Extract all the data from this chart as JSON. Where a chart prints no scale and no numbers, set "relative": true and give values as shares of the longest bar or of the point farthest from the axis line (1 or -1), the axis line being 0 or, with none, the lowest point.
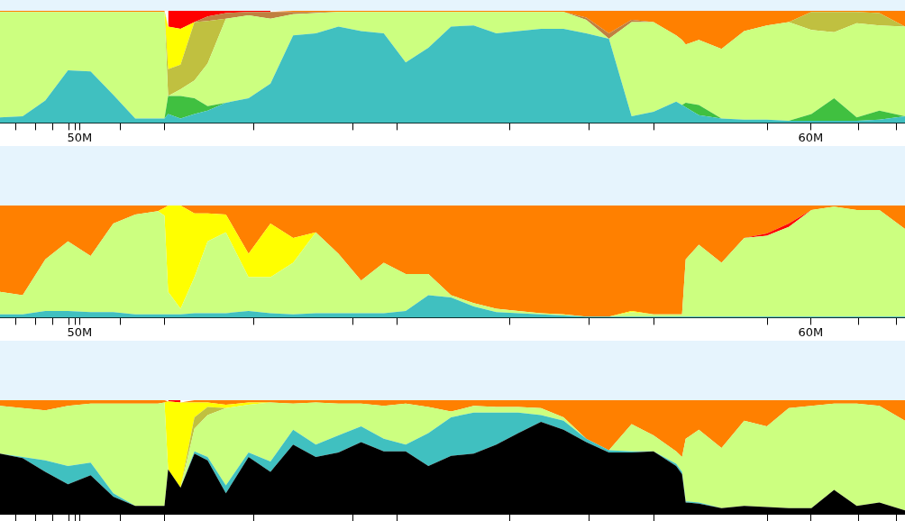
{
  "chart_data": [
    {
      "type": "area",
      "stacked": true,
      "relative": true,
      "tick_labels": "x",
      "x": [
        48.91,
        49.22,
        49.53,
        49.84,
        50.15,
        50.46,
        50.76,
        51.07,
        51.16,
        51.21,
        51.38,
        51.57,
        51.75,
        52.0,
        52.31,
        52.61,
        52.92,
        53.23,
        53.54,
        53.85,
        54.16,
        54.46,
        54.77,
        55.08,
        55.39,
        55.7,
        56.0,
        56.31,
        56.62,
        56.93,
        57.24,
        57.55,
        57.85,
        58.16,
        58.24,
        58.29,
        58.47,
        58.78,
        59.09,
        59.4,
        59.7,
        60.01,
        60.32,
        60.63,
        60.94,
        61.29
      ],
      "xlim": [
        48.91,
        61.29
      ],
      "xticks": [
        {
          "value": 49.12,
          "label": null
        },
        {
          "value": 49.4,
          "label": null
        },
        {
          "value": 49.63,
          "label": null
        },
        {
          "value": 49.85,
          "label": null
        },
        {
          "value": 49.94,
          "label": null
        },
        {
          "value": 50,
          "label": "50M"
        },
        {
          "value": 50.55,
          "label": null
        },
        {
          "value": 51.16,
          "label": null
        },
        {
          "value": 52.38,
          "label": null
        },
        {
          "value": 53.74,
          "label": null
        },
        {
          "value": 54.34,
          "label": null
        },
        {
          "value": 55.88,
          "label": null
        },
        {
          "value": 56.97,
          "label": null
        },
        {
          "value": 57.85,
          "label": null
        },
        {
          "value": 59.41,
          "label": null
        },
        {
          "value": 60,
          "label": "60M"
        },
        {
          "value": 60.65,
          "label": null
        },
        {
          "value": 61.17,
          "label": null
        }
      ],
      "series": [
        {
          "color": "#40c0c0",
          "values": [
            0.05,
            0.06,
            0.2,
            0.47,
            0.46,
            0.25,
            0.04,
            0.04,
            0.04,
            0.08,
            0.04,
            0.08,
            0.11,
            0.18,
            0.22,
            0.35,
            0.78,
            0.8,
            0.86,
            0.82,
            0.8,
            0.54,
            0.67,
            0.86,
            0.87,
            0.8,
            0.82,
            0.84,
            0.84,
            0.8,
            0.75,
            0.06,
            0.1,
            0.19,
            0.16,
            0.14,
            0.07,
            0.04,
            0.03,
            0.03,
            0.02,
            0.02,
            0.02,
            0.02,
            0.03,
            0.06
          ]
        },
        {
          "color": "#40c040",
          "values": [
            0,
            0,
            0,
            0,
            0,
            0,
            0,
            0,
            0,
            0.16,
            0.2,
            0.14,
            0.04,
            0,
            0,
            0,
            0,
            0,
            0,
            0,
            0,
            0,
            0,
            0,
            0,
            0,
            0,
            0,
            0,
            0,
            0,
            0,
            0,
            0,
            0,
            0.04,
            0.09,
            0,
            0,
            0,
            0,
            0.06,
            0.2,
            0.03,
            0.08,
            0
          ]
        },
        {
          "color": "#ccff80",
          "values": [
            0.94,
            0.93,
            0.79,
            0.52,
            0.53,
            0.74,
            0.95,
            0.95,
            0.95,
            0,
            0.06,
            0.16,
            0.38,
            0.75,
            0.74,
            0.58,
            0.19,
            0.18,
            0.13,
            0.17,
            0.19,
            0.45,
            0.32,
            0.13,
            0.12,
            0.19,
            0.17,
            0.15,
            0.15,
            0.12,
            0,
            0.84,
            0.8,
            0.59,
            0.58,
            0.52,
            0.58,
            0.62,
            0.79,
            0.84,
            0.88,
            0.75,
            0.59,
            0.84,
            0.76,
            0.8
          ]
        },
        {
          "color": "#c0c040",
          "values": [
            0,
            0,
            0,
            0,
            0,
            0,
            0,
            0,
            0,
            0.24,
            0.22,
            0.52,
            0.38,
            0,
            0,
            0,
            0,
            0,
            0,
            0,
            0,
            0,
            0,
            0,
            0,
            0,
            0,
            0,
            0,
            0,
            0,
            0,
            0,
            0,
            0,
            0,
            0,
            0,
            0,
            0,
            0,
            0.16,
            0.18,
            0.1,
            0.11,
            0
          ]
        },
        {
          "color": "#ffff00",
          "values": [
            0,
            0,
            0,
            0,
            0,
            0,
            0,
            0,
            0,
            0.38,
            0.32,
            0,
            0,
            0,
            0,
            0,
            0,
            0,
            0,
            0,
            0,
            0,
            0,
            0,
            0,
            0,
            0,
            0,
            0,
            0,
            0,
            0,
            0,
            0,
            0,
            0,
            0,
            0,
            0,
            0,
            0,
            0,
            0,
            0,
            0,
            0
          ]
        },
        {
          "color": "#c08040",
          "values": [
            0,
            0,
            0,
            0,
            0,
            0,
            0,
            0,
            0,
            0,
            0,
            0,
            0.04,
            0.05,
            0.03,
            0.06,
            0.02,
            0.01,
            0,
            0,
            0,
            0,
            0,
            0,
            0,
            0,
            0,
            0,
            0,
            0.02,
            0.05,
            0.02,
            0,
            0,
            0,
            0,
            0,
            0,
            0,
            0,
            0,
            0,
            0,
            0,
            0,
            0
          ]
        },
        {
          "color": "#ff8000",
          "values": [
            0.01,
            0.01,
            0.01,
            0.01,
            0.01,
            0.01,
            0.01,
            0.01,
            0.01,
            0,
            0,
            0,
            0,
            0,
            0,
            0,
            0.01,
            0.01,
            0.01,
            0.01,
            0.01,
            0.01,
            0.01,
            0.01,
            0.01,
            0.01,
            0.01,
            0.01,
            0.01,
            0.06,
            0.2,
            0.08,
            0.1,
            0.22,
            0.26,
            0.3,
            0.26,
            0.34,
            0.18,
            0.13,
            0.1,
            0.01,
            0.01,
            0.01,
            0.02,
            0.14
          ]
        },
        {
          "color": "#ff0000",
          "values": [
            null,
            null,
            null,
            null,
            null,
            null,
            null,
            null,
            null,
            0.14,
            0.16,
            0.1,
            0.05,
            0.02,
            0.01,
            0.01,
            null,
            null,
            null,
            null,
            null,
            null,
            null,
            null,
            null,
            null,
            null,
            null,
            null,
            null,
            null,
            null,
            null,
            null,
            null,
            null,
            null,
            null,
            null,
            null,
            null,
            null,
            null,
            null,
            null,
            null
          ]
        }
      ]
    },
    {
      "type": "area",
      "stacked": true,
      "relative": true,
      "tick_labels": "x",
      "x": [
        48.91,
        49.22,
        49.53,
        49.84,
        50.15,
        50.46,
        50.76,
        51.07,
        51.16,
        51.21,
        51.38,
        51.57,
        51.75,
        52.0,
        52.31,
        52.61,
        52.92,
        53.23,
        53.54,
        53.85,
        54.16,
        54.46,
        54.77,
        55.08,
        55.39,
        55.7,
        56.0,
        56.31,
        56.62,
        56.93,
        57.24,
        57.55,
        57.85,
        58.16,
        58.24,
        58.29,
        58.47,
        58.78,
        59.09,
        59.4,
        59.7,
        60.01,
        60.32,
        60.63,
        60.94,
        61.29
      ],
      "xlim": [
        48.91,
        61.29
      ],
      "xticks": [
        {
          "value": 49.12,
          "label": null
        },
        {
          "value": 49.4,
          "label": null
        },
        {
          "value": 49.63,
          "label": null
        },
        {
          "value": 49.85,
          "label": null
        },
        {
          "value": 49.94,
          "label": null
        },
        {
          "value": 50,
          "label": "50M"
        },
        {
          "value": 50.55,
          "label": null
        },
        {
          "value": 51.16,
          "label": null
        },
        {
          "value": 52.38,
          "label": null
        },
        {
          "value": 53.74,
          "label": null
        },
        {
          "value": 54.34,
          "label": null
        },
        {
          "value": 55.88,
          "label": null
        },
        {
          "value": 56.97,
          "label": null
        },
        {
          "value": 57.85,
          "label": null
        },
        {
          "value": 59.41,
          "label": null
        },
        {
          "value": 60,
          "label": "60M"
        },
        {
          "value": 60.65,
          "label": null
        },
        {
          "value": 61.17,
          "label": null
        }
      ],
      "series": [
        {
          "color": "#40c0c0",
          "values": [
            0.03,
            0.03,
            0.06,
            0.06,
            0.05,
            0.05,
            0.03,
            0.03,
            0.03,
            0.03,
            0.03,
            0.04,
            0.04,
            0.04,
            0.06,
            0.04,
            0.03,
            0.04,
            0.04,
            0.04,
            0.04,
            0.06,
            0.2,
            0.18,
            0.1,
            0.05,
            0.04,
            0.03,
            0.02,
            0.01,
            0.01,
            0.01,
            0.01,
            0.01,
            0.01,
            0.01,
            0.01,
            0.01,
            0.01,
            0.01,
            0.01,
            0.01,
            0.01,
            0.01,
            0.01,
            0.01
          ]
        },
        {
          "color": "#ccff80",
          "values": [
            0.2,
            0.17,
            0.46,
            0.62,
            0.5,
            0.79,
            0.89,
            0.92,
            0.88,
            0.2,
            0.05,
            0.32,
            0.64,
            0.72,
            0.3,
            0.32,
            0.46,
            0.72,
            0.53,
            0.29,
            0.45,
            0.33,
            0.19,
            0.02,
            0.03,
            0.03,
            0.02,
            0.01,
            0.01,
            0,
            0,
            0.04,
            0.02,
            0.02,
            0.02,
            0.51,
            0.64,
            0.48,
            0.7,
            0.72,
            0.8,
            0.95,
            0.98,
            0.95,
            0.95,
            0.78
          ]
        },
        {
          "color": "#ffff00",
          "values": [
            0,
            0,
            0,
            0,
            0,
            0,
            0,
            0,
            0.07,
            0.77,
            0.92,
            0.57,
            0.25,
            0.16,
            0.21,
            0.48,
            0.22,
            0,
            0,
            0,
            0,
            0,
            0,
            0,
            0,
            0,
            0,
            0,
            0,
            0,
            0,
            0.01,
            0,
            0,
            0,
            0,
            0,
            0,
            0,
            0,
            0,
            0,
            0,
            0,
            0,
            0
          ]
        },
        {
          "color": "#ff0000",
          "values": [
            null,
            null,
            null,
            null,
            null,
            null,
            null,
            null,
            null,
            null,
            null,
            null,
            null,
            null,
            null,
            null,
            null,
            null,
            null,
            null,
            null,
            null,
            null,
            null,
            null,
            null,
            null,
            null,
            null,
            null,
            null,
            null,
            null,
            null,
            null,
            null,
            null,
            null,
            0,
            0.02,
            0.03,
            0,
            null,
            null,
            null,
            null
          ]
        },
        {
          "color": "#ff8000",
          "values": [
            0.77,
            0.8,
            0.48,
            0.32,
            0.45,
            0.16,
            0.08,
            0.05,
            0.02,
            0,
            0,
            0.07,
            0.07,
            0.08,
            0.43,
            0.16,
            0.29,
            0.24,
            0.43,
            0.67,
            0.51,
            0.61,
            0.61,
            0.8,
            0.87,
            0.92,
            0.94,
            0.96,
            0.97,
            0.99,
            0.99,
            0.94,
            0.97,
            0.97,
            0.97,
            0.48,
            0.35,
            0.51,
            0.29,
            0.25,
            0.16,
            0.04,
            0.01,
            0.04,
            0.04,
            0.21
          ]
        }
      ]
    },
    {
      "type": "area",
      "stacked": true,
      "relative": true,
      "tick_labels": false,
      "x": [
        48.91,
        49.22,
        49.53,
        49.84,
        50.15,
        50.46,
        50.76,
        51.07,
        51.16,
        51.21,
        51.38,
        51.57,
        51.75,
        52.0,
        52.31,
        52.61,
        52.92,
        53.23,
        53.54,
        53.85,
        54.16,
        54.46,
        54.77,
        55.08,
        55.39,
        55.7,
        56.0,
        56.31,
        56.62,
        56.93,
        57.24,
        57.55,
        57.85,
        58.16,
        58.24,
        58.29,
        58.47,
        58.78,
        59.09,
        59.4,
        59.7,
        60.01,
        60.32,
        60.63,
        60.94,
        61.29
      ],
      "xlim": [
        48.91,
        61.29
      ],
      "xticks": [
        {
          "value": 49.12,
          "label": null
        },
        {
          "value": 49.4,
          "label": null
        },
        {
          "value": 49.63,
          "label": null
        },
        {
          "value": 49.85,
          "label": null
        },
        {
          "value": 49.94,
          "label": null
        },
        {
          "value": 50,
          "label": null
        },
        {
          "value": 50.55,
          "label": null
        },
        {
          "value": 51.16,
          "label": null
        },
        {
          "value": 52.38,
          "label": null
        },
        {
          "value": 53.74,
          "label": null
        },
        {
          "value": 54.34,
          "label": null
        },
        {
          "value": 55.88,
          "label": null
        },
        {
          "value": 56.97,
          "label": null
        },
        {
          "value": 57.85,
          "label": null
        },
        {
          "value": 59.41,
          "label": null
        },
        {
          "value": 60,
          "label": null
        },
        {
          "value": 60.65,
          "label": null
        },
        {
          "value": 61.17,
          "label": null
        }
      ],
      "series": [
        {
          "color": "#000000",
          "values": [
            0.53,
            0.49,
            0.37,
            0.26,
            0.34,
            0.15,
            0.07,
            0.07,
            0.07,
            0.39,
            0.23,
            0.53,
            0.47,
            0.18,
            0.5,
            0.37,
            0.61,
            0.5,
            0.54,
            0.63,
            0.55,
            0.55,
            0.42,
            0.51,
            0.53,
            0.61,
            0.71,
            0.81,
            0.74,
            0.63,
            0.54,
            0.54,
            0.55,
            0.42,
            0.35,
            0.1,
            0.09,
            0.05,
            0.07,
            0.06,
            0.05,
            0.05,
            0.21,
            0.07,
            0.1,
            0.03
          ]
        },
        {
          "color": "#40c0c0",
          "values": [
            0,
            0.01,
            0.1,
            0.16,
            0.11,
            0.03,
            0,
            0,
            0,
            0,
            0,
            0.02,
            0.03,
            0.07,
            0.04,
            0.09,
            0.13,
            0.11,
            0.15,
            0.14,
            0.11,
            0.06,
            0.29,
            0.34,
            0.36,
            0.28,
            0.18,
            0.06,
            0.08,
            0.03,
            0.02,
            0.01,
            0,
            0.02,
            0.02,
            0.01,
            0.01,
            0,
            0,
            0,
            0,
            0,
            0,
            0,
            0,
            0
          ]
        },
        {
          "color": "#ccff80",
          "values": [
            0.42,
            0.43,
            0.44,
            0.53,
            0.52,
            0.79,
            0.9,
            0.9,
            0.91,
            0,
            0,
            0.2,
            0.37,
            0.68,
            0.42,
            0.52,
            0.23,
            0.37,
            0.28,
            0.2,
            0.29,
            0.36,
            0.23,
            0.05,
            0.06,
            0.05,
            0.05,
            0.06,
            0.03,
            0,
            0,
            0.24,
            0.14,
            0.11,
            0.13,
            0.55,
            0.64,
            0.53,
            0.75,
            0.71,
            0.88,
            0.9,
            0.76,
            0.9,
            0.85,
            0.79
          ]
        },
        {
          "color": "#c0c040",
          "values": [
            0,
            0,
            0,
            0,
            0,
            0,
            0,
            0,
            0,
            0,
            0,
            0.1,
            0.07,
            0,
            0,
            0,
            0,
            0,
            0,
            0,
            0,
            0,
            0,
            0,
            0,
            0,
            0,
            0,
            0,
            0,
            0,
            0,
            0,
            0,
            0,
            0,
            0,
            0,
            0,
            0,
            0,
            0,
            0,
            0,
            0,
            0
          ]
        },
        {
          "color": "#ffff00",
          "values": [
            0,
            0,
            0,
            0,
            0,
            0,
            0,
            0,
            0,
            0.6,
            0.75,
            0.13,
            0.04,
            0.03,
            0.02,
            0,
            0,
            0,
            0,
            0,
            0,
            0,
            0,
            0,
            0,
            0,
            0,
            0,
            0,
            0,
            0,
            0,
            0,
            0,
            0,
            0,
            0,
            0,
            0,
            0,
            0,
            0,
            0,
            0,
            0,
            0
          ]
        },
        {
          "color": "#ff8000",
          "values": [
            0.05,
            0.07,
            0.09,
            0.05,
            0.03,
            0.03,
            0.03,
            0.03,
            0.02,
            0,
            0,
            0.02,
            0.02,
            0.04,
            0.02,
            0.02,
            0.03,
            0.02,
            0.03,
            0.03,
            0.05,
            0.03,
            0.06,
            0.1,
            0.05,
            0.06,
            0.06,
            0.07,
            0.15,
            0.34,
            0.44,
            0.21,
            0.31,
            0.45,
            0.5,
            0.34,
            0.26,
            0.42,
            0.18,
            0.23,
            0.07,
            0.05,
            0.03,
            0.03,
            0.05,
            0.18
          ]
        },
        {
          "color": "#ff0000",
          "values": [
            null,
            null,
            null,
            null,
            null,
            null,
            null,
            null,
            null,
            0.01,
            0.02,
            null,
            null,
            null,
            null,
            null,
            null,
            null,
            null,
            null,
            null,
            null,
            null,
            null,
            null,
            null,
            null,
            null,
            null,
            null,
            null,
            null,
            null,
            null,
            null,
            null,
            null,
            null,
            null,
            null,
            null,
            null,
            null,
            null,
            null,
            null
          ]
        }
      ]
    }
  ]
}
